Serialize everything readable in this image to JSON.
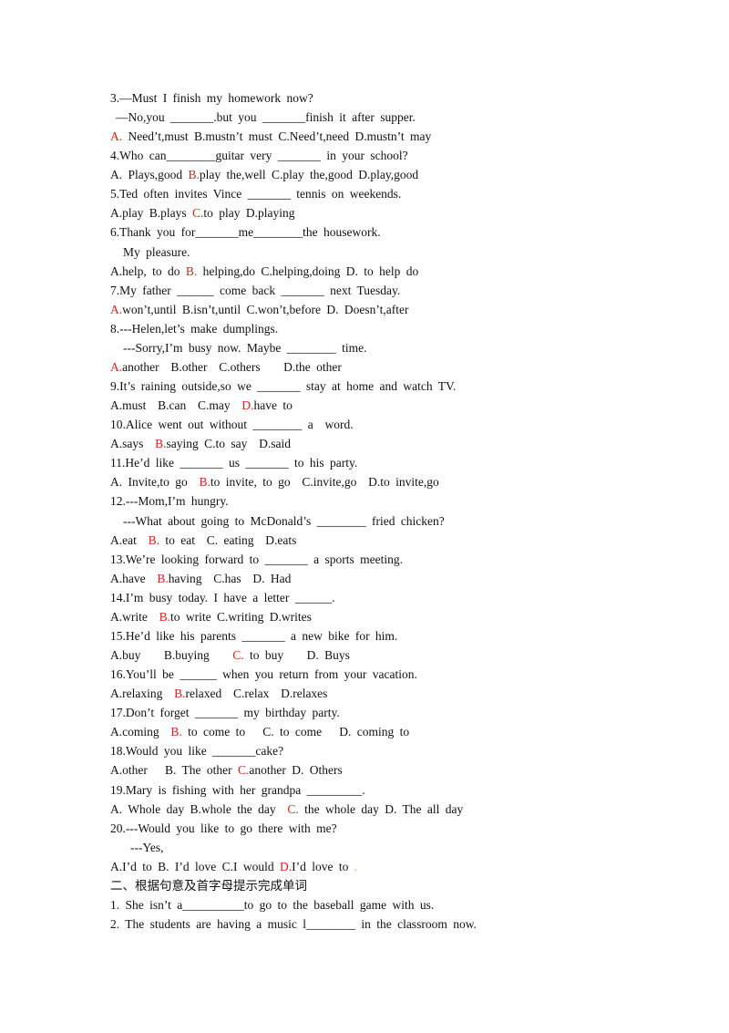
{
  "lines": [
    [
      "3.—Must I finish my homework now?"
    ],
    [
      "—No,you _______.but you _______finish it after supper."
    ],
    [
      {
        "text": "A.",
        "color": "#e0201a"
      },
      " Need’t,must B.mustn’t must C.Need’t,need D.mustn’t may"
    ],
    [
      "4.Who can________guitar very _______ in your school?"
    ],
    [
      "A. Plays,good ",
      {
        "text": "B.",
        "color": "#e0201a"
      },
      "play the,well C.play the,good D.play,good"
    ],
    [
      "5.Ted often invites Vince _______ tennis on weekends."
    ],
    [
      "A.play B.plays ",
      {
        "text": "C.",
        "color": "#e0201a"
      },
      "to play D.playing"
    ],
    [
      "6.Thank you for_______me________the housework."
    ],
    [
      "My pleasure."
    ],
    [
      "A.help, to do ",
      {
        "text": "B.",
        "color": "#e0201a"
      },
      " helping,do C.helping,doing D. to help do"
    ],
    [
      "7.My father ______ come back _______ next Tuesday."
    ],
    [
      {
        "text": "A.",
        "color": "#e0201a"
      },
      "won’t,until B.isn’t,until C.won’t,before D. Doesn’t,after"
    ],
    [
      "8.---Helen,let’s make dumplings."
    ],
    [
      "---Sorry,I’m busy now. Maybe ________ time."
    ],
    [
      {
        "text": "A.",
        "color": "#e0201a"
      },
      "another  B.other  C.others    D.the other"
    ],
    [
      "9.It’s raining outside,so we _______ stay at home and watch TV."
    ],
    [
      "A.must  B.can  C.may  ",
      {
        "text": "D.",
        "color": "#e0201a"
      },
      "have to"
    ],
    [
      "10.Alice went out without ________ a  word."
    ],
    [
      "A.says  ",
      {
        "text": "B.",
        "color": "#e0201a"
      },
      "saying C.to say  D.said"
    ],
    [
      "11.He’d like _______ us _______ to his party."
    ],
    [
      "A. Invite,to go  ",
      {
        "text": "B.",
        "color": "#e0201a"
      },
      "to invite, to go  C.invite,go  D.to invite,go"
    ],
    [
      "12.---Mom,I’m hungry."
    ],
    [
      "---What about going to McDonald’s ________ fried chicken?"
    ],
    [
      "A.eat  ",
      {
        "text": "B.",
        "color": "#e0201a"
      },
      " to eat  C. eating  D.eats"
    ],
    [
      "13.We’re looking forward to _______ a sports meeting."
    ],
    [
      "A.have  ",
      {
        "text": "B.",
        "color": "#e0201a"
      },
      "having  C.has  D. Had"
    ],
    [
      "14.I’m busy today. I have a letter ______."
    ],
    [
      "A.write  ",
      {
        "text": "B.",
        "color": "#e0201a"
      },
      "to write C.writing D.writes"
    ],
    [
      "15.He’d like his parents _______ a new bike for him."
    ],
    [
      "A.buy    B.buying    ",
      {
        "text": "C.",
        "color": "#e0201a"
      },
      " to buy    D. Buys"
    ],
    [
      "16.You’ll be ______ when you return from your vacation."
    ],
    [
      "A.relaxing  ",
      {
        "text": "B.",
        "color": "#e0201a"
      },
      "relaxed  C.relax  D.relaxes"
    ],
    [
      "17.Don’t forget _______ my birthday party."
    ],
    [
      "A.coming  ",
      {
        "text": "B.",
        "color": "#e0201a"
      },
      " to come to   C. to come   D. coming to"
    ],
    [
      "18.Would you like _______cake?"
    ],
    [
      "A.other   B. The other ",
      {
        "text": "C.",
        "color": "#e0201a"
      },
      "another D. Others"
    ],
    [
      "19.Mary is fishing with her grandpa _________."
    ],
    [
      "A. Whole day B.whole the day  ",
      {
        "text": "C.",
        "color": "#e0201a"
      },
      " the whole day D. The all day"
    ],
    [
      "20.---Would you like to go there with me?"
    ],
    [
      "---Yes,"
    ],
    [
      "A.I’d to B. I’d love C.I would ",
      {
        "text": "D.",
        "color": "#e0201a"
      },
      "I’d love to ",
      {
        "text": ".",
        "color": "#f0a020"
      }
    ],
    [
      "二、根据句意及首字母提示完成单词"
    ],
    [
      "1. She isn’t a__________to go to the baseball game with us."
    ],
    [
      "2. The students are having a music l________ in the classroom now."
    ]
  ]
}
